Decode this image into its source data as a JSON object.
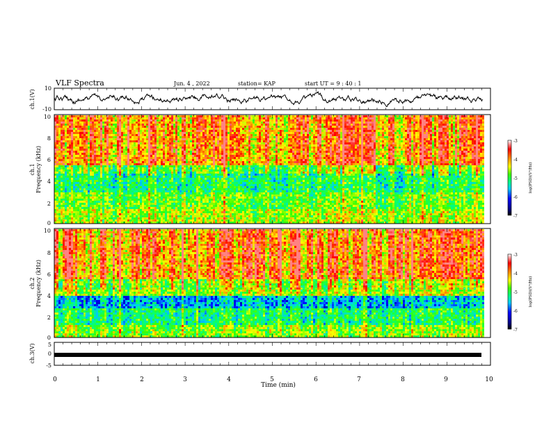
{
  "header": {
    "title": "VLF Spectra",
    "date": "Jun. 4 , 2022",
    "station": "station= KAP",
    "start": "start UT =  9 : 40 : 1"
  },
  "chart_data": [
    {
      "type": "line",
      "name": "waveform-ch1",
      "ylabel": "ch.1(V)",
      "ylim": [
        -10,
        10
      ],
      "ytick_labels": [
        "10",
        "-10"
      ]
    },
    {
      "type": "heatmap",
      "name": "spectrogram-ch1",
      "ylabel_line1": "ch.1",
      "ylabel_line2": "Frequency (kHz)",
      "ylim": [
        0,
        10
      ],
      "ytick_labels": [
        "0",
        "2",
        "4",
        "6",
        "8",
        "10"
      ],
      "colorbar": {
        "label": "log(PSD)(V²/Hz)",
        "range": [
          -7,
          -3
        ],
        "tick_labels": [
          "-3",
          "-4",
          "-5",
          "-6",
          "-7"
        ]
      }
    },
    {
      "type": "heatmap",
      "name": "spectrogram-ch2",
      "ylabel_line1": "ch.2",
      "ylabel_line2": "Frequency (kHz)",
      "ylim": [
        0,
        10
      ],
      "ytick_labels": [
        "0",
        "2",
        "4",
        "6",
        "8",
        "10"
      ],
      "colorbar": {
        "label": "log(PSD)(V²/Hz)",
        "range": [
          -7,
          -3
        ],
        "tick_labels": [
          "-3",
          "-4",
          "-5",
          "-6",
          "-7"
        ]
      }
    },
    {
      "type": "line",
      "name": "waveform-ch3",
      "ylabel": "ch.3(V)",
      "ylim": [
        -5,
        5
      ],
      "ytick_labels": [
        "5",
        "0",
        "-5"
      ]
    }
  ],
  "x_axis": {
    "xlabel": "Time (min)",
    "xlim": [
      0,
      10
    ],
    "tick_labels": [
      "0",
      "1",
      "2",
      "3",
      "4",
      "5",
      "6",
      "7",
      "8",
      "9",
      "10"
    ],
    "data_end": 9.83
  }
}
